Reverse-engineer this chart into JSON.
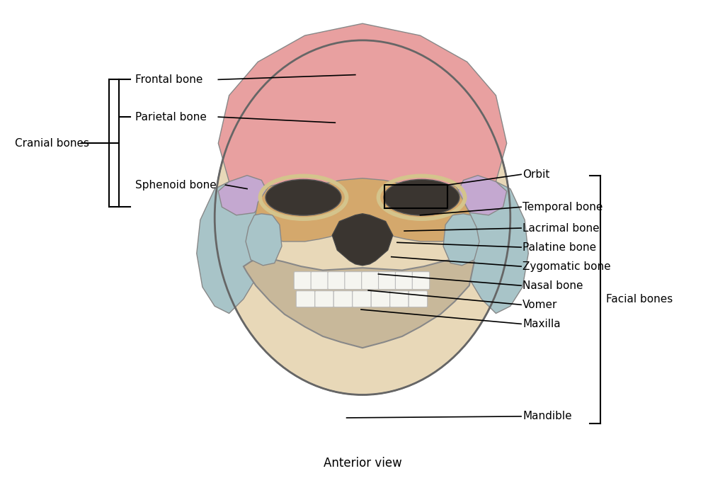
{
  "title": "Anterior view",
  "background_color": "#ffffff",
  "text_color": "#000000",
  "font_size": 11,
  "cranial_label": "Cranial bones",
  "facial_label": "Facial bones",
  "skull_colors": {
    "frontal_parietal": "#e8a0a0",
    "sphenoid": "#c4a8d0",
    "temporal": "#a8c4c8",
    "nasal_maxilla": "#d4a86c",
    "mandible": "#c8b89a",
    "orbit_rim": "#d4c48c",
    "background_skull": "#e8d8b8",
    "zygomatic": "#a8c4c8"
  }
}
